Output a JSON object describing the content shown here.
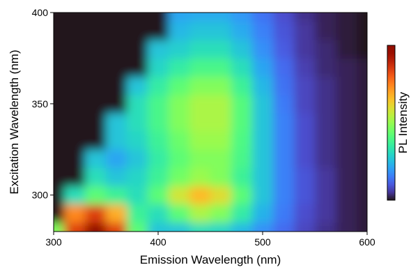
{
  "chart_data": {
    "type": "heatmap",
    "xlabel": "Emission Wavelength (nm)",
    "ylabel": "Excitation Wavelength (nm)",
    "colorbar_label": "PL Intensity",
    "colormap": "turbo",
    "x": [
      300,
      320,
      340,
      360,
      380,
      400,
      420,
      440,
      460,
      480,
      500,
      520,
      540,
      560,
      580,
      600
    ],
    "y": [
      280,
      290,
      300,
      310,
      320,
      330,
      340,
      350,
      360,
      370,
      380,
      390,
      400
    ],
    "z": [
      [
        0.5,
        0.85,
        1.0,
        0.85,
        0.45,
        0.3,
        0.3,
        0.35,
        0.33,
        0.28,
        0.22,
        0.17,
        0.12,
        0.09,
        0.07,
        0.06
      ],
      [
        0.05,
        0.75,
        0.85,
        0.7,
        0.4,
        0.35,
        0.45,
        0.55,
        0.5,
        0.38,
        0.27,
        0.19,
        0.13,
        0.1,
        0.07,
        0.06
      ],
      [
        0.05,
        0.35,
        0.45,
        0.4,
        0.35,
        0.45,
        0.6,
        0.68,
        0.62,
        0.45,
        0.3,
        0.2,
        0.14,
        0.1,
        0.07,
        0.06
      ],
      [
        0.05,
        0.05,
        0.35,
        0.3,
        0.33,
        0.4,
        0.48,
        0.53,
        0.5,
        0.4,
        0.3,
        0.2,
        0.14,
        0.1,
        0.07,
        0.06
      ],
      [
        0.05,
        0.05,
        0.3,
        0.25,
        0.3,
        0.38,
        0.45,
        0.5,
        0.5,
        0.42,
        0.3,
        0.2,
        0.13,
        0.09,
        0.07,
        0.06
      ],
      [
        0.05,
        0.05,
        0.05,
        0.3,
        0.33,
        0.4,
        0.47,
        0.53,
        0.53,
        0.43,
        0.3,
        0.2,
        0.13,
        0.09,
        0.07,
        0.06
      ],
      [
        0.05,
        0.05,
        0.05,
        0.3,
        0.35,
        0.42,
        0.5,
        0.55,
        0.55,
        0.44,
        0.3,
        0.2,
        0.13,
        0.09,
        0.07,
        0.06
      ],
      [
        0.05,
        0.05,
        0.05,
        0.05,
        0.35,
        0.42,
        0.5,
        0.55,
        0.55,
        0.44,
        0.3,
        0.19,
        0.12,
        0.09,
        0.07,
        0.06
      ],
      [
        0.05,
        0.05,
        0.05,
        0.05,
        0.3,
        0.38,
        0.45,
        0.5,
        0.5,
        0.4,
        0.28,
        0.18,
        0.12,
        0.09,
        0.07,
        0.06
      ],
      [
        0.05,
        0.05,
        0.05,
        0.05,
        0.05,
        0.33,
        0.38,
        0.42,
        0.42,
        0.35,
        0.25,
        0.17,
        0.11,
        0.08,
        0.07,
        0.06
      ],
      [
        0.05,
        0.05,
        0.05,
        0.05,
        0.05,
        0.3,
        0.32,
        0.35,
        0.35,
        0.3,
        0.22,
        0.15,
        0.1,
        0.08,
        0.06,
        0.05
      ],
      [
        0.05,
        0.05,
        0.05,
        0.05,
        0.05,
        0.05,
        0.28,
        0.3,
        0.3,
        0.26,
        0.2,
        0.14,
        0.1,
        0.07,
        0.06,
        0.05
      ],
      [
        0.05,
        0.05,
        0.05,
        0.05,
        0.05,
        0.05,
        0.25,
        0.26,
        0.26,
        0.23,
        0.18,
        0.13,
        0.09,
        0.07,
        0.06,
        0.05
      ]
    ],
    "xlim": [
      300,
      600
    ],
    "xticks": [
      300,
      400,
      500,
      600
    ],
    "ylim": [
      280,
      400
    ],
    "yticks": [
      300,
      350,
      400
    ]
  }
}
